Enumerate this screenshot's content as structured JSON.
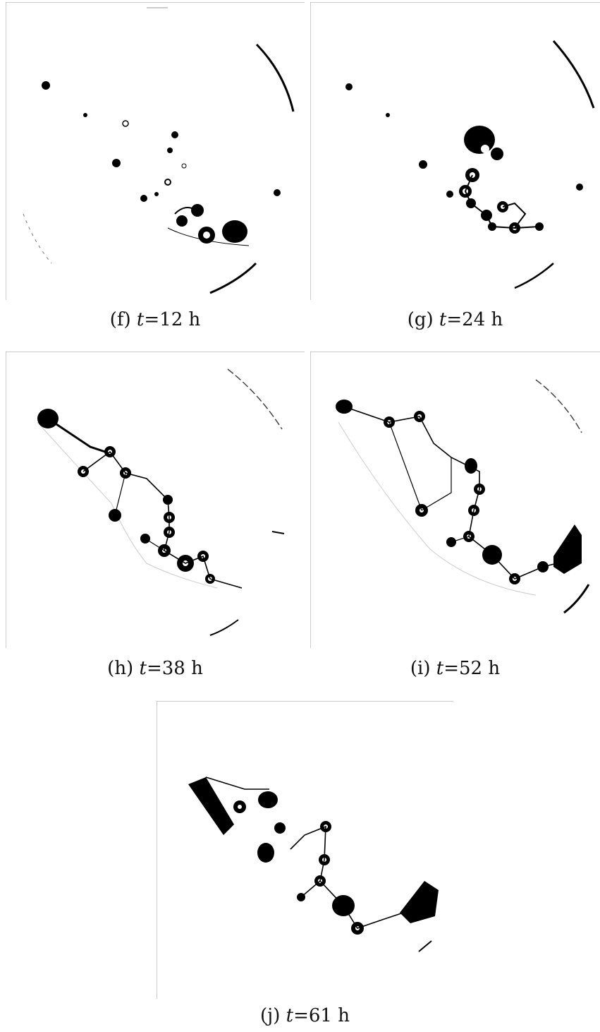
{
  "panels": [
    {
      "id": "f",
      "label": "(f)",
      "var": "t",
      "value": "=12 h"
    },
    {
      "id": "g",
      "label": "(g)",
      "var": "t",
      "value": "=24 h"
    },
    {
      "id": "h",
      "label": "(h)",
      "var": "t",
      "value": "=38 h"
    },
    {
      "id": "i",
      "label": "(i)",
      "var": "t",
      "value": "=52 h"
    },
    {
      "id": "j",
      "label": "(j)",
      "var": "t",
      "value": "=61 h"
    }
  ],
  "colors": {
    "ink": "#000000",
    "paper": "#ffffff",
    "frame": "#9a9a9a"
  }
}
